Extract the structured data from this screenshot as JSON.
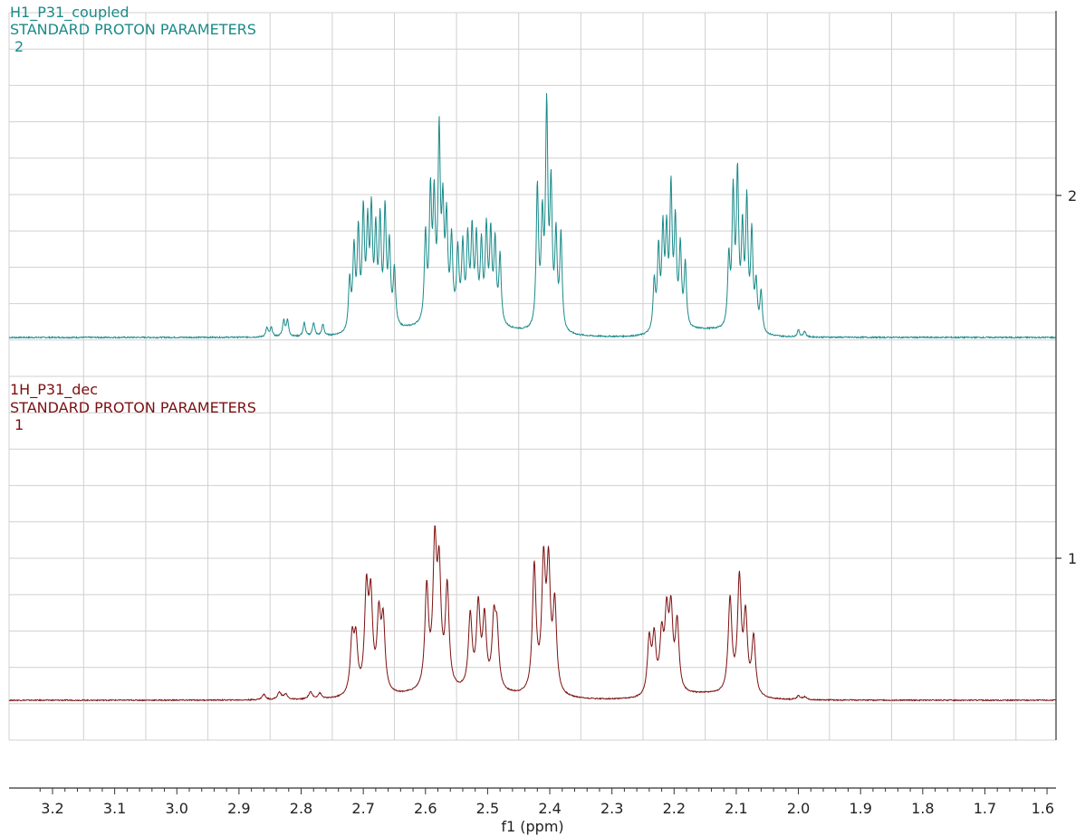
{
  "chart_data": {
    "type": "line",
    "xlabel": "f1 (ppm)",
    "xlim": [
      3.3,
      1.6
    ],
    "x_ticks": [
      "3.2",
      "3.1",
      "3.0",
      "2.9",
      "2.8",
      "2.7",
      "2.6",
      "2.5",
      "2.4",
      "2.3",
      "2.2",
      "2.1",
      "2.0",
      "1.9",
      "1.8",
      "1.7",
      "1.6"
    ],
    "y_ticks": [
      "2",
      "1"
    ],
    "grid": true,
    "colors": {
      "spectrum_2": "#1a8a8a",
      "spectrum_1": "#7d1010",
      "grid": "#d0d0d0"
    },
    "series": [
      {
        "name": "H1_P31_coupled",
        "subtitle": "STANDARD PROTON PARAMETERS",
        "index": "2",
        "peaks": [
          [
            2.855,
            0.04
          ],
          [
            2.848,
            0.04
          ],
          [
            2.828,
            0.07
          ],
          [
            2.822,
            0.07
          ],
          [
            2.795,
            0.06
          ],
          [
            2.78,
            0.06
          ],
          [
            2.765,
            0.05
          ],
          [
            2.722,
            0.22
          ],
          [
            2.715,
            0.35
          ],
          [
            2.708,
            0.42
          ],
          [
            2.7,
            0.5
          ],
          [
            2.693,
            0.42
          ],
          [
            2.687,
            0.48
          ],
          [
            2.68,
            0.4
          ],
          [
            2.673,
            0.45
          ],
          [
            2.665,
            0.5
          ],
          [
            2.658,
            0.35
          ],
          [
            2.65,
            0.25
          ],
          [
            2.6,
            0.38
          ],
          [
            2.592,
            0.55
          ],
          [
            2.586,
            0.5
          ],
          [
            2.578,
            0.8
          ],
          [
            2.572,
            0.45
          ],
          [
            2.566,
            0.42
          ],
          [
            2.558,
            0.35
          ],
          [
            2.548,
            0.3
          ],
          [
            2.54,
            0.32
          ],
          [
            2.532,
            0.35
          ],
          [
            2.525,
            0.38
          ],
          [
            2.518,
            0.35
          ],
          [
            2.51,
            0.33
          ],
          [
            2.502,
            0.4
          ],
          [
            2.495,
            0.38
          ],
          [
            2.488,
            0.35
          ],
          [
            2.48,
            0.3
          ],
          [
            2.42,
            0.62
          ],
          [
            2.412,
            0.45
          ],
          [
            2.405,
            0.95
          ],
          [
            2.398,
            0.6
          ],
          [
            2.39,
            0.4
          ],
          [
            2.382,
            0.42
          ],
          [
            2.232,
            0.22
          ],
          [
            2.225,
            0.35
          ],
          [
            2.218,
            0.42
          ],
          [
            2.212,
            0.4
          ],
          [
            2.205,
            0.6
          ],
          [
            2.198,
            0.45
          ],
          [
            2.19,
            0.35
          ],
          [
            2.182,
            0.28
          ],
          [
            2.112,
            0.3
          ],
          [
            2.105,
            0.58
          ],
          [
            2.098,
            0.66
          ],
          [
            2.09,
            0.42
          ],
          [
            2.083,
            0.55
          ],
          [
            2.075,
            0.42
          ],
          [
            2.068,
            0.2
          ],
          [
            2.06,
            0.18
          ],
          [
            2.0,
            0.03
          ],
          [
            1.99,
            0.025
          ]
        ]
      },
      {
        "name": "1H_P31_dec",
        "subtitle": "STANDARD PROTON PARAMETERS",
        "index": "1",
        "peaks": [
          [
            2.86,
            0.03
          ],
          [
            2.835,
            0.04
          ],
          [
            2.825,
            0.03
          ],
          [
            2.785,
            0.04
          ],
          [
            2.77,
            0.03
          ],
          [
            2.718,
            0.3
          ],
          [
            2.712,
            0.28
          ],
          [
            2.695,
            0.55
          ],
          [
            2.688,
            0.5
          ],
          [
            2.675,
            0.4
          ],
          [
            2.668,
            0.38
          ],
          [
            2.598,
            0.55
          ],
          [
            2.585,
            0.75
          ],
          [
            2.578,
            0.6
          ],
          [
            2.565,
            0.55
          ],
          [
            2.528,
            0.4
          ],
          [
            2.515,
            0.45
          ],
          [
            2.505,
            0.38
          ],
          [
            2.49,
            0.35
          ],
          [
            2.485,
            0.3
          ],
          [
            2.425,
            0.7
          ],
          [
            2.41,
            0.68
          ],
          [
            2.402,
            0.66
          ],
          [
            2.392,
            0.48
          ],
          [
            2.24,
            0.3
          ],
          [
            2.232,
            0.3
          ],
          [
            2.22,
            0.3
          ],
          [
            2.212,
            0.4
          ],
          [
            2.205,
            0.42
          ],
          [
            2.195,
            0.38
          ],
          [
            2.11,
            0.52
          ],
          [
            2.095,
            0.62
          ],
          [
            2.085,
            0.42
          ],
          [
            2.072,
            0.32
          ],
          [
            2.0,
            0.02
          ],
          [
            1.99,
            0.015
          ]
        ]
      }
    ]
  }
}
